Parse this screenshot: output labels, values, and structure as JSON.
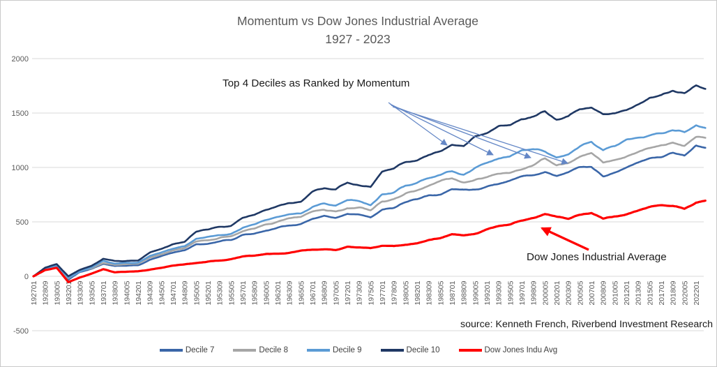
{
  "title": {
    "line1": "Momentum vs Dow Jones Industrial Average",
    "line2": "1927 - 2023"
  },
  "annotations": {
    "deciles_label": "Top 4 Deciles as Ranked by Momentum",
    "djia_label": "Dow Jones Industrial Average"
  },
  "source": "source: Kenneth French, Riverbend Investment Research",
  "colors": {
    "decile7": "#3A66A8",
    "decile8": "#A6A6A6",
    "decile9": "#5B9BD5",
    "decile10": "#1F3864",
    "dow_jones": "#FF0000",
    "gridline": "#D9D9D9",
    "title_text": "#595959",
    "axis_text": "#595959",
    "annotation_text": "#1a1a1a",
    "arrow_blue": "#6487C6"
  },
  "chart_data": {
    "type": "line",
    "title": "Momentum vs Dow Jones Industrial Average 1927 - 2023",
    "xlabel": "",
    "ylabel": "",
    "ylim": [
      -500,
      2000
    ],
    "y_ticks": [
      2000,
      1500,
      1000,
      500,
      0,
      -500
    ],
    "grid": "horizontal",
    "legend_position": "bottom",
    "x_tick_labels": [
      "192701",
      "192809",
      "193005",
      "193201",
      "193309",
      "193505",
      "193701",
      "193809",
      "194005",
      "194201",
      "194309",
      "194505",
      "194701",
      "194809",
      "195005",
      "195201",
      "195309",
      "195505",
      "195701",
      "195809",
      "196005",
      "196201",
      "196309",
      "196505",
      "196701",
      "196809",
      "197005",
      "197201",
      "197309",
      "197505",
      "197701",
      "197809",
      "198005",
      "198201",
      "198309",
      "198505",
      "198701",
      "198809",
      "199005",
      "199201",
      "199309",
      "199505",
      "199701",
      "199809",
      "200005",
      "200201",
      "200309",
      "200505",
      "200701",
      "200809",
      "201005",
      "201201",
      "201309",
      "201505",
      "201701",
      "201809",
      "202005",
      "202201"
    ],
    "sampling_note": "values sampled at each x tick label (every 20 months); final extra value is the series end in late 2023",
    "series": [
      {
        "name": "Decile 7",
        "color": "#3A66A8",
        "values": [
          0,
          60,
          85,
          -30,
          40,
          70,
          115,
          95,
          100,
          105,
          155,
          185,
          215,
          235,
          290,
          300,
          320,
          335,
          380,
          395,
          430,
          450,
          475,
          490,
          530,
          560,
          540,
          575,
          565,
          545,
          620,
          640,
          680,
          700,
          740,
          760,
          800,
          780,
          790,
          820,
          850,
          880,
          920,
          940,
          960,
          920,
          940,
          980,
          1000,
          930,
          960,
          1000,
          1030,
          1060,
          1080,
          1110,
          1090,
          1190,
          1170
        ]
      },
      {
        "name": "Decile 8",
        "color": "#A6A6A6",
        "values": [
          0,
          65,
          90,
          -20,
          45,
          75,
          125,
          105,
          110,
          115,
          170,
          200,
          235,
          255,
          320,
          340,
          360,
          375,
          420,
          440,
          475,
          500,
          525,
          540,
          590,
          620,
          600,
          640,
          630,
          610,
          690,
          710,
          760,
          780,
          820,
          850,
          890,
          870,
          890,
          910,
          940,
          960,
          1000,
          1030,
          1080,
          1020,
          1040,
          1090,
          1110,
          1030,
          1070,
          1110,
          1150,
          1180,
          1210,
          1240,
          1220,
          1290,
          1290
        ]
      },
      {
        "name": "Decile 9",
        "color": "#5B9BD5",
        "values": [
          0,
          70,
          100,
          -10,
          50,
          85,
          140,
          115,
          120,
          125,
          185,
          215,
          250,
          270,
          340,
          360,
          385,
          400,
          450,
          470,
          510,
          540,
          565,
          580,
          640,
          670,
          650,
          700,
          690,
          665,
          760,
          780,
          830,
          850,
          890,
          920,
          960,
          940,
          1000,
          1050,
          1090,
          1110,
          1160,
          1170,
          1150,
          1100,
          1120,
          1190,
          1230,
          1140,
          1180,
          1240,
          1270,
          1300,
          1320,
          1350,
          1330,
          1400,
          1380
        ]
      },
      {
        "name": "Decile 10",
        "color": "#1F3864",
        "values": [
          0,
          75,
          110,
          0,
          60,
          95,
          160,
          135,
          140,
          145,
          215,
          250,
          290,
          310,
          400,
          420,
          450,
          470,
          540,
          560,
          610,
          650,
          680,
          690,
          770,
          810,
          790,
          870,
          850,
          820,
          950,
          970,
          1030,
          1060,
          1120,
          1160,
          1210,
          1190,
          1280,
          1310,
          1370,
          1390,
          1450,
          1470,
          1520,
          1450,
          1470,
          1540,
          1560,
          1500,
          1520,
          1560,
          1600,
          1650,
          1660,
          1700,
          1680,
          1750,
          1720
        ]
      },
      {
        "name": "Dow Jones Indu Avg",
        "color": "#FF0000",
        "values": [
          0,
          55,
          75,
          -55,
          -10,
          25,
          65,
          35,
          40,
          45,
          60,
          75,
          95,
          105,
          125,
          140,
          150,
          165,
          185,
          190,
          205,
          215,
          220,
          235,
          250,
          255,
          245,
          270,
          260,
          250,
          275,
          270,
          290,
          300,
          330,
          350,
          390,
          380,
          400,
          430,
          450,
          470,
          510,
          530,
          560,
          530,
          520,
          560,
          580,
          520,
          545,
          560,
          590,
          620,
          640,
          650,
          620,
          690,
          700
        ]
      }
    ]
  },
  "legend": {
    "items": [
      {
        "label": "Decile 7",
        "color": "#3A66A8"
      },
      {
        "label": "Decile 8",
        "color": "#A6A6A6"
      },
      {
        "label": "Decile 9",
        "color": "#5B9BD5"
      },
      {
        "label": "Decile 10",
        "color": "#1F3864"
      },
      {
        "label": "Dow Jones Indu Avg",
        "color": "#FF0000"
      }
    ]
  }
}
